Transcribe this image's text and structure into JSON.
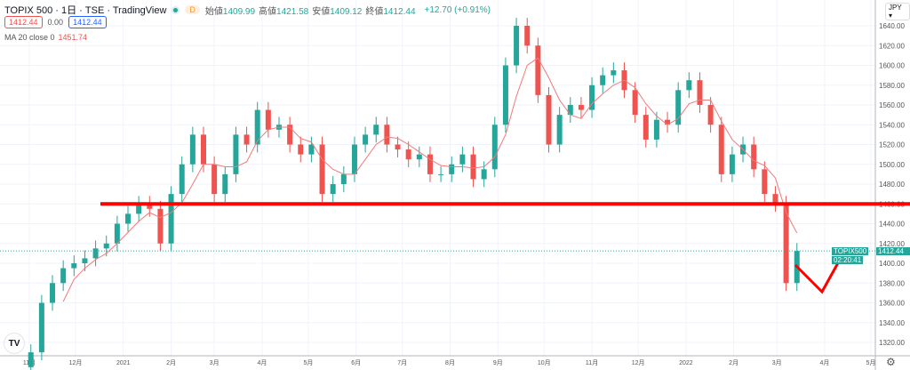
{
  "header": {
    "title": "TOPIX 500 · 1日 · TSE · TradingView",
    "interval_badge": "D",
    "ohlc": [
      {
        "k": "始値",
        "v": "1409.99"
      },
      {
        "k": "高値",
        "v": "1421.58"
      },
      {
        "k": "安値",
        "v": "1409.12"
      },
      {
        "k": "終値",
        "v": "1412.44"
      }
    ],
    "change": "+12.70 (+0.91%)",
    "sell": "1412.44",
    "spread": "0.00",
    "buy": "1412.44",
    "indicator": "MA 20 close 0",
    "indicator_value": "1451.74",
    "currency": "JPY"
  },
  "price_tag": {
    "symbol": "TOPIX500",
    "price": "1412.44",
    "countdown": "02:20:41"
  },
  "colors": {
    "up": "#26a69a",
    "down": "#ef5350",
    "ma": "#f07a7a",
    "annotation": "#ff0000"
  },
  "chart_data": {
    "type": "candlestick",
    "ylim": [
      1310,
      1650
    ],
    "yticks": [
      1320,
      1340,
      1360,
      1380,
      1400,
      1420,
      1440,
      1460,
      1480,
      1500,
      1520,
      1540,
      1560,
      1580,
      1600,
      1620,
      1640
    ],
    "xticks": [
      {
        "d": "2020-11-01",
        "l": "11月"
      },
      {
        "d": "2020-12-01",
        "l": "12月"
      },
      {
        "d": "2021-01-01",
        "l": "2021"
      },
      {
        "d": "2021-02-01",
        "l": "2月"
      },
      {
        "d": "2021-03-01",
        "l": "3月"
      },
      {
        "d": "2021-04-01",
        "l": "4月"
      },
      {
        "d": "2021-05-01",
        "l": "5月"
      },
      {
        "d": "2021-06-01",
        "l": "6月"
      },
      {
        "d": "2021-07-01",
        "l": "7月"
      },
      {
        "d": "2021-08-01",
        "l": "8月"
      },
      {
        "d": "2021-09-01",
        "l": "9月"
      },
      {
        "d": "2021-10-01",
        "l": "10月"
      },
      {
        "d": "2021-11-01",
        "l": "11月"
      },
      {
        "d": "2021-12-01",
        "l": "12月"
      },
      {
        "d": "2022-01-01",
        "l": "2022"
      },
      {
        "d": "2022-02-01",
        "l": "2月"
      },
      {
        "d": "2022-03-01",
        "l": "3月"
      },
      {
        "d": "2022-04-01",
        "l": "4月"
      },
      {
        "d": "2022-05-01",
        "l": "5月"
      }
    ],
    "start": "2020-11-02",
    "weekly_close": [
      1310,
      1360,
      1380,
      1395,
      1400,
      1405,
      1415,
      1420,
      1440,
      1450,
      1460,
      1455,
      1420,
      1470,
      1500,
      1530,
      1500,
      1470,
      1490,
      1530,
      1520,
      1555,
      1535,
      1540,
      1520,
      1510,
      1520,
      1470,
      1480,
      1490,
      1520,
      1530,
      1540,
      1520,
      1515,
      1505,
      1510,
      1490,
      1490,
      1500,
      1510,
      1485,
      1495,
      1540,
      1600,
      1640,
      1620,
      1570,
      1520,
      1550,
      1560,
      1555,
      1580,
      1590,
      1595,
      1575,
      1550,
      1525,
      1545,
      1540,
      1575,
      1585,
      1560,
      1540,
      1490,
      1510,
      1520,
      1495,
      1470,
      1460,
      1380,
      1412.44
    ],
    "ma_period_weeks": 4,
    "horizontal_line": 1460
  }
}
